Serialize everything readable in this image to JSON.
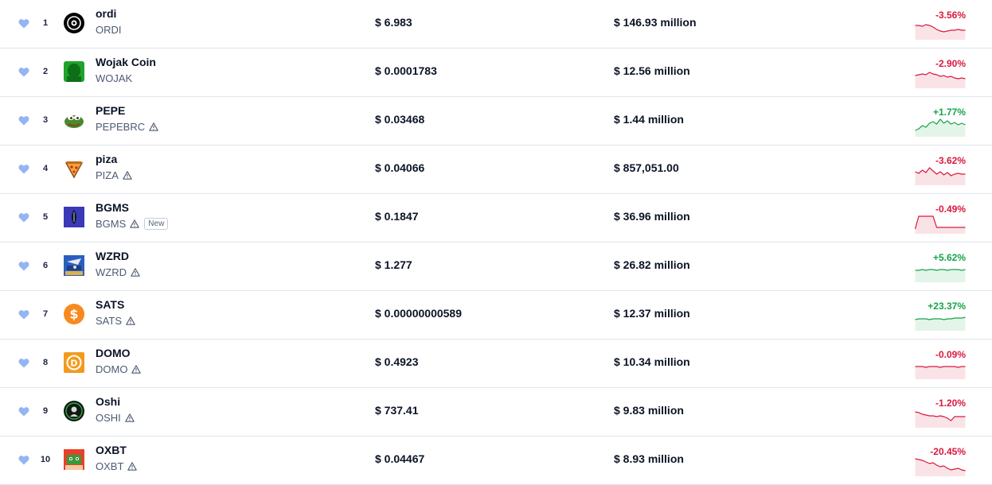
{
  "colors": {
    "negative": "#d9183c",
    "positive": "#16a34a",
    "heart": "#93b6f2"
  },
  "rows": [
    {
      "rank": "1",
      "name": "ordi",
      "symbol": "ORDI",
      "warning": false,
      "badge": "",
      "price": "$ 6.983",
      "volume": "$ 146.93 million",
      "change": "-3.56%",
      "direction": "down",
      "logo": "ordi-logo-icon",
      "spark": [
        8,
        8,
        9,
        7,
        8,
        10,
        13,
        15,
        16,
        15,
        14,
        14,
        13,
        14,
        14
      ]
    },
    {
      "rank": "2",
      "name": "Wojak Coin",
      "symbol": "WOJAK",
      "warning": false,
      "badge": "",
      "price": "$ 0.0001783",
      "volume": "$ 12.56 million",
      "change": "-2.90%",
      "direction": "down",
      "logo": "wojak-logo-icon",
      "spark": [
        10,
        9,
        8,
        9,
        6,
        8,
        9,
        11,
        10,
        12,
        11,
        13,
        14,
        13,
        14
      ]
    },
    {
      "rank": "3",
      "name": "PEPE",
      "symbol": "PEPEBRC",
      "warning": true,
      "badge": "",
      "price": "$ 0.03468",
      "volume": "$ 1.44 million",
      "change": "+1.77%",
      "direction": "up",
      "logo": "pepe-logo-icon",
      "spark": [
        18,
        16,
        12,
        14,
        9,
        7,
        10,
        4,
        9,
        6,
        10,
        8,
        11,
        9,
        11
      ]
    },
    {
      "rank": "4",
      "name": "piza",
      "symbol": "PIZA",
      "warning": true,
      "badge": "",
      "price": "$ 0.04066",
      "volume": "$ 857,051.00",
      "change": "-3.62%",
      "direction": "down",
      "logo": "piza-logo-icon",
      "spark": [
        9,
        11,
        7,
        10,
        4,
        8,
        12,
        9,
        13,
        10,
        14,
        12,
        11,
        12,
        12
      ]
    },
    {
      "rank": "5",
      "name": "BGMS",
      "symbol": "BGMS",
      "warning": true,
      "badge": "New",
      "price": "$ 0.1847",
      "volume": "$ 36.96 million",
      "change": "-0.49%",
      "direction": "down",
      "logo": "bgms-logo-icon",
      "spark": [
        20,
        4,
        4,
        4,
        4,
        4,
        18,
        18,
        18,
        18,
        18,
        18,
        18,
        18,
        18
      ]
    },
    {
      "rank": "6",
      "name": "WZRD",
      "symbol": "WZRD",
      "warning": true,
      "badge": "",
      "price": "$ 1.277",
      "volume": "$ 26.82 million",
      "change": "+5.62%",
      "direction": "up",
      "logo": "wzrd-logo-icon",
      "spark": [
        11,
        11,
        10,
        11,
        10,
        10,
        11,
        10,
        10,
        11,
        10,
        10,
        10,
        11,
        10
      ]
    },
    {
      "rank": "7",
      "name": "SATS",
      "symbol": "SATS",
      "warning": true,
      "badge": "",
      "price": "$ 0.00000000589",
      "volume": "$ 12.37 million",
      "change": "+23.37%",
      "direction": "up",
      "logo": "sats-logo-icon",
      "spark": [
        12,
        11,
        11,
        11,
        12,
        11,
        11,
        11,
        12,
        11,
        11,
        10,
        10,
        10,
        9
      ]
    },
    {
      "rank": "8",
      "name": "DOMO",
      "symbol": "DOMO",
      "warning": true,
      "badge": "",
      "price": "$ 0.4923",
      "volume": "$ 10.34 million",
      "change": "-0.09%",
      "direction": "down",
      "logo": "domo-logo-icon",
      "spark": [
        10,
        10,
        10,
        11,
        10,
        10,
        10,
        11,
        10,
        10,
        10,
        10,
        11,
        10,
        10
      ]
    },
    {
      "rank": "9",
      "name": "Oshi",
      "symbol": "OSHI",
      "warning": true,
      "badge": "",
      "price": "$ 737.41",
      "volume": "$ 9.83 million",
      "change": "-1.20%",
      "direction": "down",
      "logo": "oshi-logo-icon",
      "spark": [
        6,
        7,
        9,
        10,
        11,
        11,
        12,
        11,
        12,
        14,
        17,
        12,
        12,
        12,
        12
      ]
    },
    {
      "rank": "10",
      "name": "OXBT",
      "symbol": "OXBT",
      "warning": true,
      "badge": "",
      "price": "$ 0.04467",
      "volume": "$ 8.93 million",
      "change": "-20.45%",
      "direction": "down",
      "logo": "oxbt-logo-icon",
      "spark": [
        4,
        5,
        6,
        8,
        10,
        9,
        12,
        14,
        13,
        16,
        18,
        17,
        16,
        18,
        19
      ]
    }
  ]
}
